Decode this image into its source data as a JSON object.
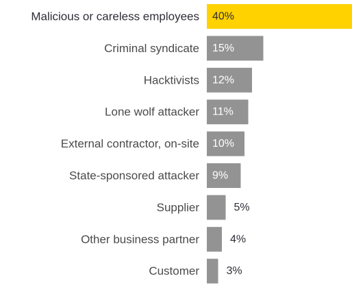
{
  "chart_data": {
    "type": "bar",
    "orientation": "horizontal",
    "categories": [
      "Malicious or careless employees",
      "Criminal syndicate",
      "Hacktivists",
      "Lone wolf attacker",
      "External contractor, on-site",
      "State-sponsored attacker",
      "Supplier",
      "Other business partner",
      "Customer"
    ],
    "values": [
      40,
      15,
      12,
      11,
      10,
      9,
      5,
      4,
      3
    ],
    "value_labels": [
      "40%",
      "15%",
      "12%",
      "11%",
      "10%",
      "9%",
      "5%",
      "4%",
      "3%"
    ],
    "unit": "%",
    "highlight_index": 0,
    "colors": {
      "highlight_bar": "#ffd200",
      "bar": "#939393",
      "highlight_text": "#2e2e38",
      "label_inside": "#ffffff",
      "label_outside": "#2e2e38",
      "category_text": "#4a4a4a"
    },
    "title": "",
    "xlabel": "",
    "ylabel": "",
    "grid": false,
    "legend": false
  }
}
